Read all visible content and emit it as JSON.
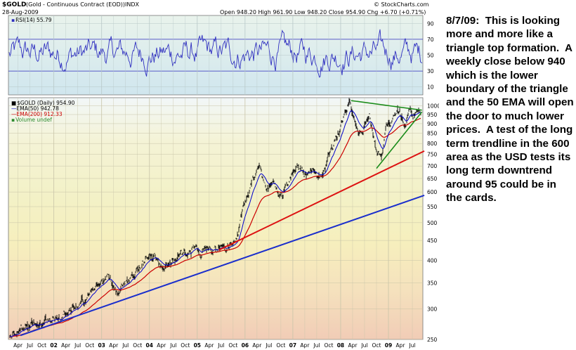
{
  "header": {
    "symbol": "$GOLD",
    "description": "(Gold - Continuous Contract (EOD))",
    "exchange": "INDX",
    "date": "28-Aug-2009",
    "ohlc": "Open 948.20  High 961.90  Low 948.20  Close 954.90  Chg +6.70 (+0.71%)",
    "source": "© StockCharts.com"
  },
  "rsi_legend": "RSI(14) 55.79",
  "price_legend": {
    "main": "$GOLD (Daily) 954.90",
    "ema50": "EMA(50) 942.78",
    "ema200": "EMA(200) 912.33",
    "volume": "Volume undef"
  },
  "annotation": "8/7/09:  This is looking more and more like a triangle top formation.  A weekly close below 940 which is the lower boundary of the triangle and the 50 EMA will open the door to much lower prices.  A test of the long term trendline in the 600 area as the USD tests its long term downtrend around 95 could be in the cards.",
  "colors": {
    "price_bars": "#000000",
    "rsi_line": "#3030c0",
    "ema50": "#0000cc",
    "ema200": "#cc0000",
    "trendline_red": "#dd1111",
    "trendline_blue": "#1a2ecc",
    "triangle": "#1a8c1a",
    "volume": "#2e8b2e"
  },
  "chart_data": [
    {
      "type": "line",
      "title": "RSI(14)",
      "ylim": [
        0,
        100
      ],
      "y_ticks": [
        10,
        30,
        50,
        70,
        90
      ],
      "reference_lines": [
        30,
        70
      ],
      "last_value": 55.79
    },
    {
      "type": "candlestick",
      "title": "$GOLD (Daily)",
      "scale": "log",
      "ylim": [
        250,
        1050
      ],
      "y_ticks": [
        250,
        300,
        350,
        400,
        450,
        500,
        550,
        600,
        650,
        700,
        750,
        800,
        850,
        900,
        950,
        1000
      ],
      "x_labels": [
        "Apr",
        "Jul",
        "Oct",
        "02",
        "Apr",
        "Jul",
        "Oct",
        "03",
        "Apr",
        "Jul",
        "Oct",
        "04",
        "Apr",
        "Jul",
        "Oct",
        "05",
        "Apr",
        "Jul",
        "Oct",
        "06",
        "Apr",
        "Jul",
        "Oct",
        "07",
        "Apr",
        "Jul",
        "Oct",
        "08",
        "Apr",
        "Jul",
        "Oct",
        "09",
        "Apr",
        "Jul"
      ],
      "x_label_times": [
        2001.25,
        2001.5,
        2001.75,
        2002,
        2002.25,
        2002.5,
        2002.75,
        2003,
        2003.25,
        2003.5,
        2003.75,
        2004,
        2004.25,
        2004.5,
        2004.75,
        2005,
        2005.25,
        2005.5,
        2005.75,
        2006,
        2006.25,
        2006.5,
        2006.75,
        2007,
        2007.25,
        2007.5,
        2007.75,
        2008,
        2008.25,
        2008.5,
        2008.75,
        2009,
        2009.25,
        2009.5
      ],
      "price_path": [
        [
          2001.25,
          258
        ],
        [
          2001.5,
          268
        ],
        [
          2001.75,
          280
        ],
        [
          2002,
          282
        ],
        [
          2002.25,
          300
        ],
        [
          2002.5,
          310
        ],
        [
          2002.75,
          318
        ],
        [
          2003,
          350
        ],
        [
          2003.17,
          360
        ],
        [
          2003.35,
          330
        ],
        [
          2003.6,
          360
        ],
        [
          2003.85,
          395
        ],
        [
          2004,
          420
        ],
        [
          2004.25,
          395
        ],
        [
          2004.45,
          395
        ],
        [
          2004.7,
          410
        ],
        [
          2004.95,
          440
        ],
        [
          2005.15,
          425
        ],
        [
          2005.4,
          430
        ],
        [
          2005.6,
          430
        ],
        [
          2005.85,
          470
        ],
        [
          2006,
          560
        ],
        [
          2006.2,
          650
        ],
        [
          2006.3,
          720
        ],
        [
          2006.45,
          590
        ],
        [
          2006.6,
          640
        ],
        [
          2006.8,
          600
        ],
        [
          2006.95,
          635
        ],
        [
          2007.1,
          680
        ],
        [
          2007.35,
          660
        ],
        [
          2007.6,
          670
        ],
        [
          2007.8,
          780
        ],
        [
          2007.95,
          840
        ],
        [
          2008.1,
          940
        ],
        [
          2008.2,
          1030
        ],
        [
          2008.3,
          900
        ],
        [
          2008.45,
          880
        ],
        [
          2008.6,
          960
        ],
        [
          2008.75,
          750
        ],
        [
          2008.85,
          720
        ],
        [
          2008.95,
          880
        ],
        [
          2009.1,
          940
        ],
        [
          2009.2,
          950
        ],
        [
          2009.35,
          900
        ],
        [
          2009.45,
          970
        ],
        [
          2009.55,
          930
        ],
        [
          2009.65,
          955
        ]
      ],
      "series": [
        {
          "name": "EMA(50)",
          "last_value": 942.78
        },
        {
          "name": "EMA(200)",
          "last_value": 912.33
        }
      ],
      "trendlines": [
        {
          "color": "red",
          "points": [
            [
              2005.45,
              425
            ],
            [
              2009.75,
              765
            ]
          ]
        },
        {
          "color": "blue",
          "points": [
            [
              2001.3,
              256
            ],
            [
              2009.75,
              588
            ]
          ]
        },
        {
          "color": "green",
          "points": [
            [
              2008.22,
              1032
            ],
            [
              2009.7,
              975
            ]
          ]
        },
        {
          "color": "green",
          "points": [
            [
              2008.75,
              690
            ],
            [
              2009.7,
              965
            ]
          ]
        }
      ]
    }
  ]
}
